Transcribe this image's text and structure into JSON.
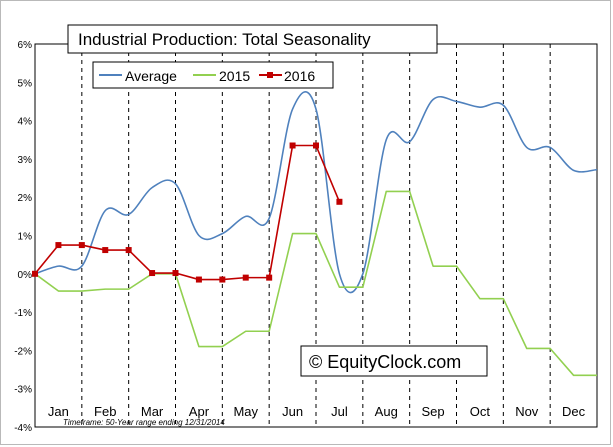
{
  "chart_data": {
    "type": "line",
    "title": "Industrial Production: Total Seasonality",
    "categories": [
      "Jan",
      "Feb",
      "Mar",
      "Apr",
      "May",
      "Jun",
      "Jul",
      "Aug",
      "Sep",
      "Oct",
      "Nov",
      "Dec"
    ],
    "y_ticks": [
      "6%",
      "5%",
      "4%",
      "3%",
      "2%",
      "1%",
      "0%",
      "-1%",
      "-2%",
      "-3%",
      "-4%"
    ],
    "ylim": [
      -4,
      6
    ],
    "xlim": [
      0,
      12
    ],
    "grid": "vertical dashed lines between months",
    "legend_position": "top-left",
    "footnote": "Timeframe: 50-Year range ending 12/31/2014",
    "watermark": "© EquityClock.com",
    "series": [
      {
        "name": "Average",
        "color": "#4f81bd",
        "marker": "none",
        "smooth": true,
        "x": [
          0,
          0.5,
          1.0,
          1.5,
          2.0,
          2.5,
          3.0,
          3.5,
          4.0,
          4.5,
          5.0,
          5.5,
          6.0,
          6.5,
          7.0,
          7.5,
          8.0,
          8.5,
          9.0,
          9.5,
          10.0,
          10.5,
          11.0,
          11.5,
          12.0
        ],
        "y": [
          0.0,
          0.2,
          0.2,
          1.65,
          1.55,
          2.25,
          2.35,
          1.0,
          1.05,
          1.5,
          1.45,
          4.3,
          4.3,
          0.0,
          0.0,
          3.5,
          3.45,
          4.55,
          4.5,
          4.35,
          4.4,
          3.3,
          3.3,
          2.7,
          2.72
        ]
      },
      {
        "name": "2015",
        "color": "#92d050",
        "marker": "none",
        "smooth": false,
        "x": [
          0,
          0.5,
          1.0,
          1.5,
          2.0,
          2.5,
          3.0,
          3.5,
          4.0,
          4.5,
          5.0,
          5.5,
          6.0,
          6.5,
          7.0,
          7.5,
          8.0,
          8.5,
          9.0,
          9.5,
          10.0,
          10.5,
          11.0,
          11.5,
          12.0
        ],
        "y": [
          0.0,
          -0.45,
          -0.45,
          -0.4,
          -0.4,
          0.0,
          0.0,
          -1.9,
          -1.9,
          -1.5,
          -1.5,
          1.05,
          1.05,
          -0.35,
          -0.35,
          2.15,
          2.15,
          0.2,
          0.2,
          -0.65,
          -0.65,
          -1.95,
          -1.95,
          -2.65,
          -2.65
        ]
      },
      {
        "name": "2016",
        "color": "#c00000",
        "marker": "square",
        "smooth": false,
        "x": [
          0,
          0.5,
          1.0,
          1.5,
          2.0,
          2.5,
          3.0,
          3.5,
          4.0,
          4.5,
          5.0,
          5.5,
          6.0,
          6.5
        ],
        "y": [
          0.0,
          0.75,
          0.75,
          0.62,
          0.62,
          0.02,
          0.02,
          -0.15,
          -0.15,
          -0.1,
          -0.1,
          3.35,
          3.35,
          1.88
        ]
      }
    ]
  }
}
